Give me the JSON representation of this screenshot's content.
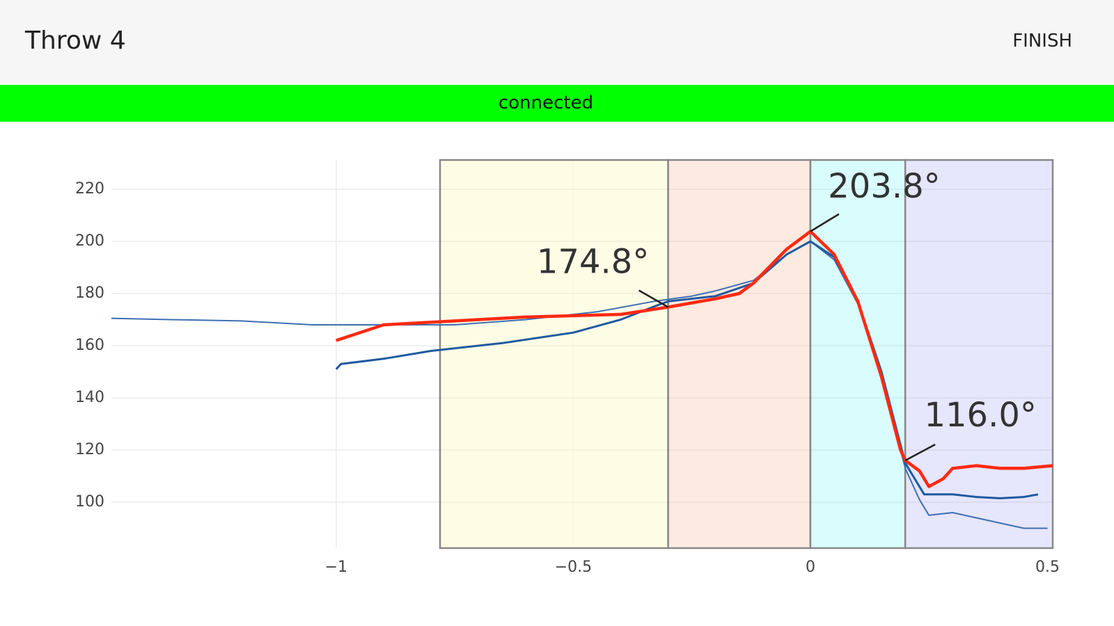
{
  "header": {
    "title": "Throw 4",
    "button": "FINISH"
  },
  "status": "connected",
  "chart_data": {
    "type": "line",
    "xlim": [
      -1.474,
      0.511
    ],
    "ylim": [
      82.4,
      231.2
    ],
    "xticks": [
      {
        "value": -1,
        "label": "−1"
      },
      {
        "value": -0.5,
        "label": "−0.5"
      },
      0,
      0.5
    ],
    "yticks": [
      100,
      120,
      140,
      160,
      180,
      200,
      220
    ],
    "grid": true,
    "regions": [
      {
        "x0": -0.781,
        "x1": -0.3,
        "color": "#fdfde0"
      },
      {
        "x0": -0.3,
        "x1": 0,
        "color": "#fde6da"
      },
      {
        "x0": 0,
        "x1": 0.2,
        "color": "#d2fbfb"
      },
      {
        "x0": 0.2,
        "x1": 0.511,
        "color": "#e2e2fb"
      }
    ],
    "series": [
      {
        "color": "#3d6fb3",
        "x": [
          -1.474,
          -1.35,
          -1.2,
          -1.05,
          -0.9,
          -0.75,
          -0.6,
          -0.45,
          -0.33,
          -0.25,
          -0.2,
          -0.12,
          -0.05,
          0,
          0.05,
          0.1,
          0.15,
          0.19,
          0.2,
          0.23,
          0.25,
          0.3,
          0.35,
          0.4,
          0.45,
          0.5
        ],
        "values": [
          170.5,
          170,
          169.5,
          168,
          168,
          168,
          170,
          173,
          177,
          179,
          181,
          185,
          195,
          200,
          193,
          176,
          148,
          120,
          113,
          101,
          95,
          96,
          94,
          92,
          90,
          90
        ]
      },
      {
        "color": "#1f5aa0",
        "x": [
          -1,
          -0.99,
          -0.9,
          -0.8,
          -0.65,
          -0.5,
          -0.4,
          -0.33,
          -0.3,
          -0.25,
          -0.2,
          -0.12,
          -0.05,
          0,
          0.05,
          0.1,
          0.15,
          0.19,
          0.2,
          0.24,
          0.3,
          0.35,
          0.4,
          0.45,
          0.48
        ],
        "values": [
          151,
          153,
          155,
          158,
          161,
          165,
          170,
          175,
          177,
          178,
          179,
          184,
          195,
          200,
          194,
          177,
          150,
          122,
          115,
          103,
          103,
          102,
          101.5,
          102,
          103
        ]
      },
      {
        "color": "#ff2a12",
        "x": [
          -1,
          -0.9,
          -0.8,
          -0.6,
          -0.4,
          -0.3,
          -0.2,
          -0.15,
          -0.12,
          -0.05,
          0,
          0.05,
          0.1,
          0.15,
          0.19,
          0.2,
          0.23,
          0.25,
          0.28,
          0.3,
          0.35,
          0.4,
          0.45,
          0.511
        ],
        "values": [
          162,
          168,
          169,
          171,
          172,
          174.8,
          178,
          180,
          184,
          197,
          203.8,
          195,
          177,
          148,
          120,
          116,
          112,
          106,
          109,
          113,
          114,
          113,
          113,
          114
        ]
      }
    ],
    "annotations": [
      {
        "x": -0.3,
        "y": 174.8,
        "text": "174.8°"
      },
      {
        "x": 0,
        "y": 203.8,
        "text": "203.8°"
      },
      {
        "x": 0.2,
        "y": 116.0,
        "text": "116.0°"
      }
    ]
  }
}
